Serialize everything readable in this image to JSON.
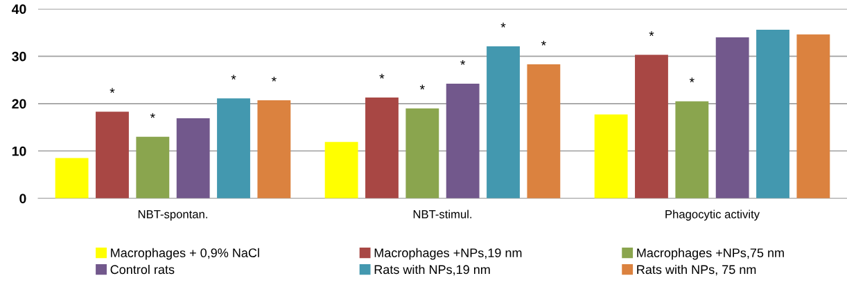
{
  "chart_data": {
    "type": "bar",
    "categories": [
      "NBT-spontan.",
      "NBT-stimul.",
      "Phagocytic activity"
    ],
    "series": [
      {
        "name": "Macrophages + 0,9% NaCl",
        "color": "#ffff00",
        "values": [
          8.5,
          11.9,
          17.7
        ],
        "value_labels": [
          null,
          null,
          null
        ]
      },
      {
        "name": "Macrophages +NPs,19 nm",
        "color": "#a84744",
        "values": [
          18.3,
          21.3,
          30.3
        ],
        "value_labels": [
          "*",
          "*",
          "*"
        ]
      },
      {
        "name": "Macrophages +NPs,75 nm",
        "color": "#8aa54e",
        "values": [
          13.0,
          19.0,
          20.5
        ],
        "value_labels": [
          "*",
          "*",
          "*"
        ]
      },
      {
        "name": "Control rats",
        "color": "#72588c",
        "values": [
          16.9,
          24.2,
          34.0
        ],
        "value_labels": [
          null,
          "*",
          null
        ]
      },
      {
        "name": "Rats with NPs,19 nm",
        "color": "#4398af",
        "values": [
          21.1,
          32.1,
          35.6
        ],
        "value_labels": [
          "*",
          "*",
          null
        ]
      },
      {
        "name": "Rats with NPs, 75 nm",
        "color": "#db823f",
        "values": [
          20.7,
          28.3,
          34.6
        ],
        "value_labels": [
          "*",
          "*",
          null
        ]
      }
    ],
    "ylim": [
      0,
      40
    ],
    "yticks": [
      0,
      10,
      20,
      30,
      40
    ],
    "grid": "y",
    "legend": "bottom"
  }
}
